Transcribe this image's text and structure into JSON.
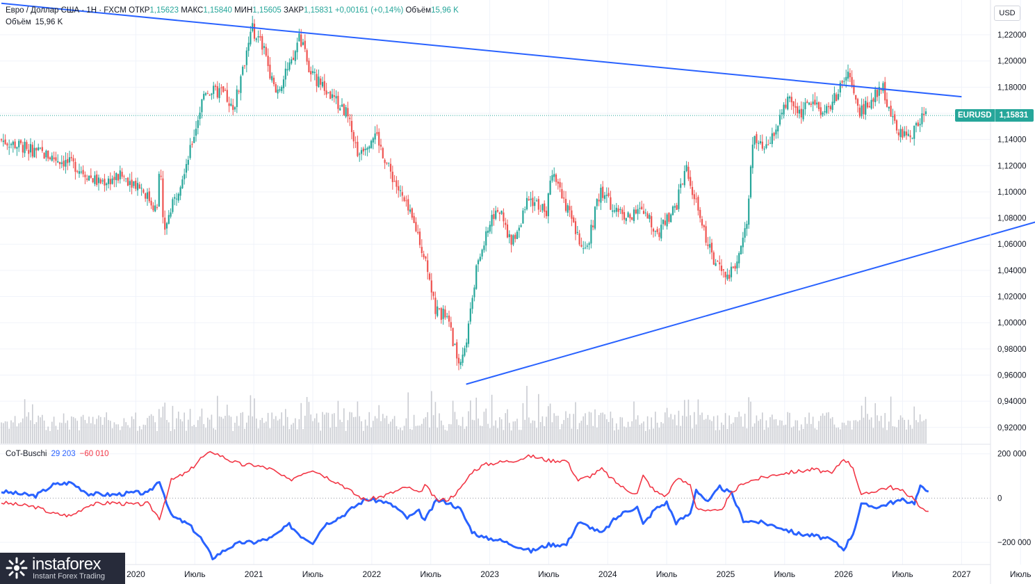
{
  "legend": {
    "symbol": "Евро / Доллар США · 1Н · FXCM",
    "open_label": "ОТКР",
    "open": "1,15623",
    "high_label": "МАКС",
    "high": "1,15840",
    "low_label": "МИН",
    "low": "1,15605",
    "close_label": "ЗАКР",
    "close": "1,15831",
    "change": "+0,00161 (+0,14%)",
    "volume_label": "Объём",
    "volume": "15,96 K"
  },
  "volume_legend": {
    "label": "Объём",
    "value": "15,96 K"
  },
  "currency_button": "USD",
  "symbol_tag": {
    "name": "EURUSD",
    "price": "1,15831",
    "color": "#26a69a"
  },
  "cot_legend": {
    "name": "CoT-Buschi",
    "value_blue": "29 203",
    "value_red": "−60 010"
  },
  "colors": {
    "up": "#26a69a",
    "down": "#ef5350",
    "trendline": "#2962ff",
    "cot_blue": "#2962ff",
    "cot_red": "#f23645",
    "volume": "#c9cbd1"
  },
  "logo": {
    "name": "instaforex",
    "tagline": "Instant Forex Trading"
  },
  "chart_data": [
    {
      "type": "candlestick",
      "ylabel": "USD",
      "y_ticks": [
        "1,22000",
        "1,20000",
        "1,18000",
        "1,16000",
        "1,14000",
        "1,12000",
        "1,10000",
        "1,08000",
        "1,06000",
        "1,04000",
        "1,02000",
        "1,00000",
        "0,98000",
        "0,96000",
        "0,94000",
        "0,92000"
      ],
      "y_tick_values": [
        1.22,
        1.2,
        1.18,
        1.16,
        1.14,
        1.12,
        1.1,
        1.08,
        1.06,
        1.04,
        1.02,
        1.0,
        0.98,
        0.96,
        0.94,
        0.92
      ],
      "ylim": [
        0.905,
        1.245
      ],
      "x_ticks": [
        "2020",
        "Июль",
        "2021",
        "Июль",
        "2022",
        "Июль",
        "2023",
        "Июль",
        "2024",
        "Июль",
        "2025",
        "Июль",
        "2026",
        "Июль",
        "2027",
        "Июль"
      ],
      "x_tick_years": [
        2020.0,
        2020.5,
        2021.0,
        2021.5,
        2022.0,
        2022.5,
        2023.0,
        2023.5,
        2024.0,
        2024.5,
        2025.0,
        2025.5,
        2026.0,
        2026.5,
        2027.0,
        2027.5
      ],
      "xlim": [
        2018.86,
        2028.2
      ],
      "current_price": 1.15831,
      "price_path": [
        [
          2018.86,
          1.14
        ],
        [
          2019.2,
          1.13
        ],
        [
          2019.5,
          1.12
        ],
        [
          2019.7,
          1.107
        ],
        [
          2019.9,
          1.112
        ],
        [
          2020.05,
          1.105
        ],
        [
          2020.2,
          1.085
        ],
        [
          2020.22,
          1.13
        ],
        [
          2020.25,
          1.07
        ],
        [
          2020.35,
          1.095
        ],
        [
          2020.5,
          1.14
        ],
        [
          2020.6,
          1.178
        ],
        [
          2020.75,
          1.175
        ],
        [
          2020.85,
          1.165
        ],
        [
          2021.0,
          1.225
        ],
        [
          2021.1,
          1.21
        ],
        [
          2021.2,
          1.175
        ],
        [
          2021.35,
          1.2
        ],
        [
          2021.4,
          1.22
        ],
        [
          2021.5,
          1.19
        ],
        [
          2021.65,
          1.175
        ],
        [
          2021.8,
          1.16
        ],
        [
          2021.9,
          1.13
        ],
        [
          2022.05,
          1.145
        ],
        [
          2022.15,
          1.12
        ],
        [
          2022.3,
          1.09
        ],
        [
          2022.4,
          1.07
        ],
        [
          2022.5,
          1.04
        ],
        [
          2022.55,
          1.01
        ],
        [
          2022.65,
          1.005
        ],
        [
          2022.75,
          0.97
        ],
        [
          2022.82,
          0.985
        ],
        [
          2022.9,
          1.04
        ],
        [
          2023.0,
          1.07
        ],
        [
          2023.08,
          1.09
        ],
        [
          2023.2,
          1.06
        ],
        [
          2023.35,
          1.095
        ],
        [
          2023.5,
          1.085
        ],
        [
          2023.55,
          1.12
        ],
        [
          2023.7,
          1.08
        ],
        [
          2023.82,
          1.05
        ],
        [
          2023.95,
          1.1
        ],
        [
          2024.05,
          1.09
        ],
        [
          2024.2,
          1.08
        ],
        [
          2024.3,
          1.085
        ],
        [
          2024.45,
          1.07
        ],
        [
          2024.6,
          1.09
        ],
        [
          2024.68,
          1.12
        ],
        [
          2024.8,
          1.08
        ],
        [
          2024.9,
          1.05
        ],
        [
          2025.0,
          1.035
        ],
        [
          2025.1,
          1.04
        ],
        [
          2025.2,
          1.08
        ],
        [
          2025.25,
          1.14
        ],
        [
          2025.35,
          1.13
        ],
        [
          2025.45,
          1.15
        ],
        [
          2025.55,
          1.17
        ],
        [
          2025.65,
          1.16
        ],
        [
          2025.75,
          1.17
        ],
        [
          2025.85,
          1.16
        ],
        [
          2025.95,
          1.172
        ],
        [
          2026.05,
          1.19
        ],
        [
          2026.15,
          1.16
        ],
        [
          2026.25,
          1.17
        ],
        [
          2026.35,
          1.18
        ],
        [
          2026.45,
          1.15
        ],
        [
          2026.55,
          1.14
        ],
        [
          2026.7,
          1.15831
        ]
      ],
      "trendlines": [
        {
          "points": [
            [
              2018.86,
              1.2441
            ],
            [
              2027.0,
              1.1727
            ]
          ]
        },
        {
          "points": [
            [
              2022.8,
              0.953
            ],
            [
              2028.0,
              1.0865
            ]
          ]
        }
      ]
    },
    {
      "type": "line",
      "name": "CoT-Buschi",
      "y_ticks": [
        "200 000",
        "0",
        "−200 000"
      ],
      "y_tick_values": [
        200000,
        0,
        -200000
      ],
      "ylim": [
        -300000,
        240000
      ],
      "series": [
        {
          "color": "#2962ff",
          "values": [
            [
              2018.86,
              30000
            ],
            [
              2019.0,
              20000
            ],
            [
              2019.15,
              10000
            ],
            [
              2019.3,
              60000
            ],
            [
              2019.45,
              70000
            ],
            [
              2019.6,
              20000
            ],
            [
              2019.8,
              15000
            ],
            [
              2020.0,
              25000
            ],
            [
              2020.1,
              20000
            ],
            [
              2020.2,
              80000
            ],
            [
              2020.3,
              -80000
            ],
            [
              2020.45,
              -120000
            ],
            [
              2020.55,
              -180000
            ],
            [
              2020.65,
              -270000
            ],
            [
              2020.8,
              -220000
            ],
            [
              2020.9,
              -200000
            ],
            [
              2021.0,
              -200000
            ],
            [
              2021.15,
              -180000
            ],
            [
              2021.3,
              -120000
            ],
            [
              2021.4,
              -170000
            ],
            [
              2021.5,
              -200000
            ],
            [
              2021.6,
              -120000
            ],
            [
              2021.75,
              -80000
            ],
            [
              2021.85,
              -40000
            ],
            [
              2021.95,
              -5000
            ],
            [
              2022.1,
              -15000
            ],
            [
              2022.2,
              -40000
            ],
            [
              2022.3,
              -90000
            ],
            [
              2022.4,
              -60000
            ],
            [
              2022.45,
              -100000
            ],
            [
              2022.55,
              -10000
            ],
            [
              2022.65,
              -20000
            ],
            [
              2022.75,
              -50000
            ],
            [
              2022.85,
              -150000
            ],
            [
              2022.95,
              -180000
            ],
            [
              2023.05,
              -185000
            ],
            [
              2023.2,
              -210000
            ],
            [
              2023.35,
              -240000
            ],
            [
              2023.5,
              -210000
            ],
            [
              2023.65,
              -210000
            ],
            [
              2023.75,
              -110000
            ],
            [
              2023.85,
              -130000
            ],
            [
              2023.95,
              -160000
            ],
            [
              2024.05,
              -100000
            ],
            [
              2024.15,
              -60000
            ],
            [
              2024.25,
              -40000
            ],
            [
              2024.3,
              -120000
            ],
            [
              2024.4,
              -50000
            ],
            [
              2024.5,
              -20000
            ],
            [
              2024.58,
              -110000
            ],
            [
              2024.7,
              -70000
            ],
            [
              2024.75,
              40000
            ],
            [
              2024.85,
              -20000
            ],
            [
              2024.95,
              50000
            ],
            [
              2025.05,
              20000
            ],
            [
              2025.15,
              -100000
            ],
            [
              2025.3,
              -110000
            ],
            [
              2025.45,
              -130000
            ],
            [
              2025.6,
              -160000
            ],
            [
              2025.75,
              -170000
            ],
            [
              2025.9,
              -190000
            ],
            [
              2026.0,
              -230000
            ],
            [
              2026.08,
              -160000
            ],
            [
              2026.15,
              -30000
            ],
            [
              2026.3,
              -40000
            ],
            [
              2026.4,
              -20000
            ],
            [
              2026.5,
              -10000
            ],
            [
              2026.6,
              -20000
            ],
            [
              2026.65,
              50000
            ],
            [
              2026.72,
              29203
            ]
          ]
        },
        {
          "color": "#f23645",
          "values": [
            [
              2018.86,
              -20000
            ],
            [
              2019.0,
              -30000
            ],
            [
              2019.15,
              -40000
            ],
            [
              2019.3,
              -70000
            ],
            [
              2019.45,
              -80000
            ],
            [
              2019.6,
              -30000
            ],
            [
              2019.8,
              -20000
            ],
            [
              2020.0,
              -30000
            ],
            [
              2020.1,
              -25000
            ],
            [
              2020.2,
              -90000
            ],
            [
              2020.3,
              80000
            ],
            [
              2020.45,
              120000
            ],
            [
              2020.55,
              180000
            ],
            [
              2020.65,
              210000
            ],
            [
              2020.8,
              170000
            ],
            [
              2020.9,
              150000
            ],
            [
              2021.0,
              150000
            ],
            [
              2021.15,
              130000
            ],
            [
              2021.3,
              80000
            ],
            [
              2021.4,
              110000
            ],
            [
              2021.5,
              130000
            ],
            [
              2021.6,
              100000
            ],
            [
              2021.75,
              60000
            ],
            [
              2021.85,
              20000
            ],
            [
              2021.95,
              -10000
            ],
            [
              2022.1,
              10000
            ],
            [
              2022.2,
              30000
            ],
            [
              2022.3,
              50000
            ],
            [
              2022.4,
              20000
            ],
            [
              2022.45,
              60000
            ],
            [
              2022.55,
              -10000
            ],
            [
              2022.65,
              -5000
            ],
            [
              2022.75,
              40000
            ],
            [
              2022.85,
              120000
            ],
            [
              2022.95,
              150000
            ],
            [
              2023.05,
              160000
            ],
            [
              2023.2,
              170000
            ],
            [
              2023.35,
              190000
            ],
            [
              2023.5,
              170000
            ],
            [
              2023.65,
              170000
            ],
            [
              2023.75,
              80000
            ],
            [
              2023.85,
              100000
            ],
            [
              2023.95,
              130000
            ],
            [
              2024.05,
              80000
            ],
            [
              2024.15,
              40000
            ],
            [
              2024.25,
              20000
            ],
            [
              2024.3,
              100000
            ],
            [
              2024.4,
              30000
            ],
            [
              2024.5,
              10000
            ],
            [
              2024.58,
              90000
            ],
            [
              2024.7,
              60000
            ],
            [
              2024.75,
              -40000
            ],
            [
              2024.85,
              -60000
            ],
            [
              2024.95,
              -60000
            ],
            [
              2025.05,
              20000
            ],
            [
              2025.15,
              70000
            ],
            [
              2025.3,
              90000
            ],
            [
              2025.45,
              110000
            ],
            [
              2025.6,
              120000
            ],
            [
              2025.75,
              130000
            ],
            [
              2025.9,
              110000
            ],
            [
              2026.0,
              180000
            ],
            [
              2026.08,
              140000
            ],
            [
              2026.15,
              10000
            ],
            [
              2026.3,
              40000
            ],
            [
              2026.4,
              50000
            ],
            [
              2026.5,
              30000
            ],
            [
              2026.6,
              0
            ],
            [
              2026.65,
              -50000
            ],
            [
              2026.72,
              -60010
            ]
          ]
        }
      ]
    }
  ]
}
